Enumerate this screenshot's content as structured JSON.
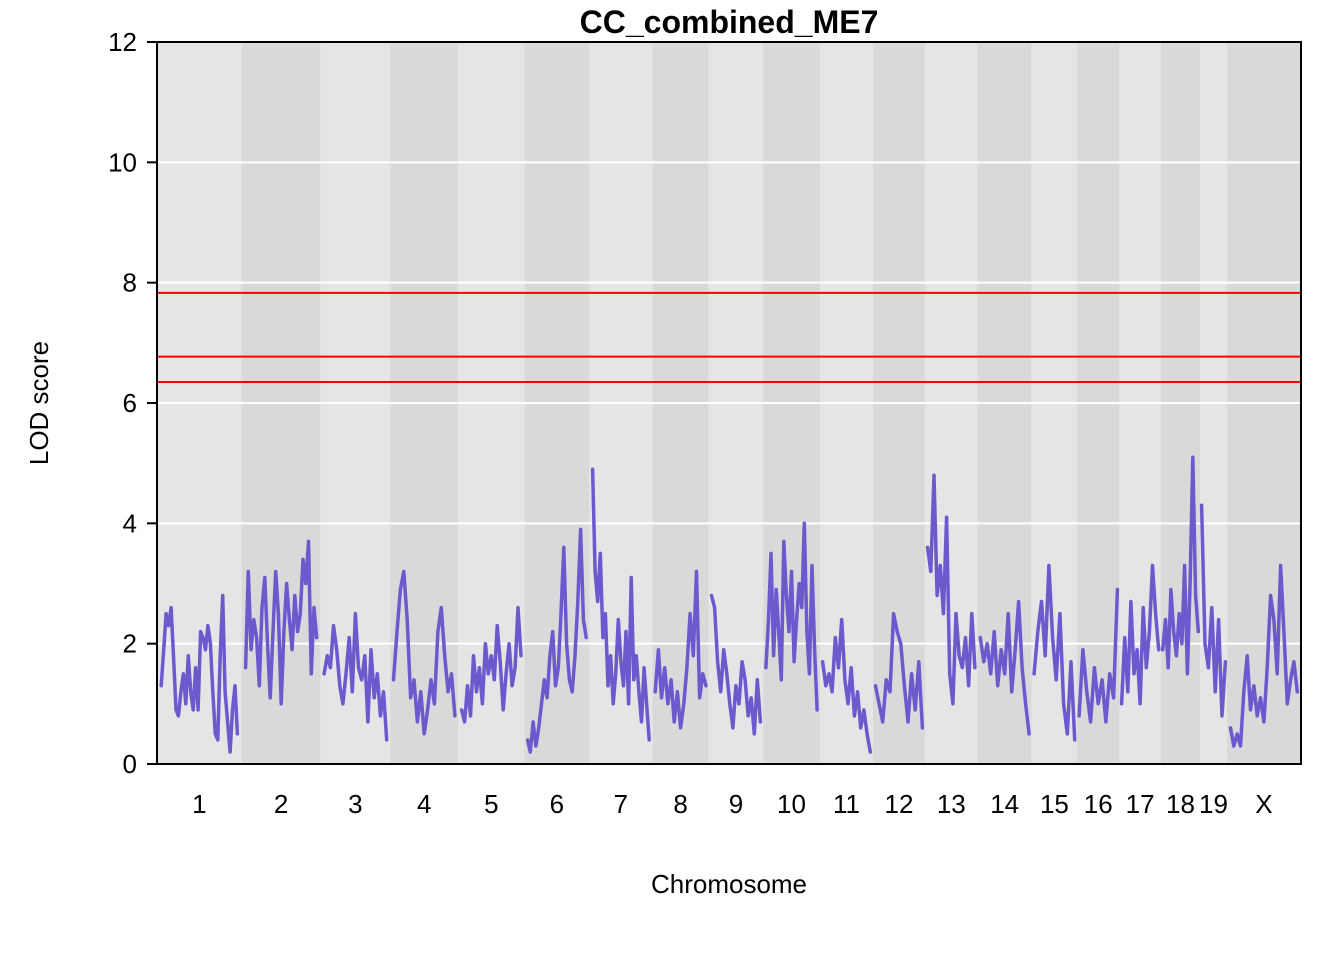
{
  "chart_data": {
    "type": "line",
    "title": "CC_combined_ME7",
    "xlabel": "Chromosome",
    "ylabel": "LOD score",
    "ylim": [
      0,
      12
    ],
    "yticks": [
      0,
      2,
      4,
      6,
      8,
      10,
      12
    ],
    "grid": true,
    "background_bands": [
      "#e5e5e5",
      "#d9d9d9"
    ],
    "line_color": "#6a5acd",
    "threshold_color": "#ff0000",
    "thresholds": [
      7.83,
      6.77,
      6.35
    ],
    "chromosomes": [
      {
        "label": "1",
        "length": 195
      },
      {
        "label": "2",
        "length": 182
      },
      {
        "label": "3",
        "length": 160
      },
      {
        "label": "4",
        "length": 157
      },
      {
        "label": "5",
        "length": 152
      },
      {
        "label": "6",
        "length": 150
      },
      {
        "label": "7",
        "length": 145
      },
      {
        "label": "8",
        "length": 130
      },
      {
        "label": "9",
        "length": 125
      },
      {
        "label": "10",
        "length": 131
      },
      {
        "label": "11",
        "length": 122
      },
      {
        "label": "12",
        "length": 120
      },
      {
        "label": "13",
        "length": 121
      },
      {
        "label": "14",
        "length": 125
      },
      {
        "label": "15",
        "length": 104
      },
      {
        "label": "16",
        "length": 98
      },
      {
        "label": "17",
        "length": 95
      },
      {
        "label": "18",
        "length": 91
      },
      {
        "label": "19",
        "length": 61
      },
      {
        "label": "X",
        "length": 171
      }
    ],
    "series": [
      {
        "chromosomes": [
          {
            "chr": "1",
            "lod": [
              1.3,
              1.9,
              2.5,
              2.3,
              2.6,
              1.8,
              0.9,
              0.8,
              1.2,
              1.5,
              1.0,
              1.8,
              1.2,
              0.9,
              1.6,
              0.9,
              2.2,
              2.1,
              1.9,
              2.3,
              2.0,
              1.2,
              0.5,
              0.4,
              1.8,
              2.8,
              1.2,
              0.7,
              0.2,
              0.9,
              1.3,
              0.5
            ]
          },
          {
            "chr": "2",
            "lod": [
              1.6,
              3.2,
              1.9,
              2.4,
              2.1,
              1.3,
              2.6,
              3.1,
              2.0,
              1.1,
              2.2,
              3.2,
              2.5,
              1.0,
              2.2,
              3.0,
              2.4,
              1.9,
              2.8,
              2.2,
              2.5,
              3.4,
              3.0,
              3.7,
              1.5,
              2.6,
              2.1
            ]
          },
          {
            "chr": "3",
            "lod": [
              1.5,
              1.8,
              1.6,
              2.3,
              1.9,
              1.3,
              1.0,
              1.5,
              2.1,
              1.2,
              2.5,
              1.6,
              1.4,
              1.8,
              0.7,
              1.9,
              1.1,
              1.5,
              0.8,
              1.2,
              0.4
            ]
          },
          {
            "chr": "4",
            "lod": [
              1.4,
              2.2,
              2.9,
              3.2,
              2.4,
              1.1,
              1.4,
              0.7,
              1.2,
              0.5,
              0.9,
              1.4,
              1.0,
              2.2,
              2.6,
              1.8,
              1.2,
              1.5,
              0.8
            ]
          },
          {
            "chr": "5",
            "lod": [
              0.9,
              0.7,
              1.3,
              0.8,
              1.8,
              1.2,
              1.6,
              1.0,
              2.0,
              1.5,
              1.8,
              1.4,
              2.3,
              1.7,
              0.9,
              1.5,
              2.0,
              1.3,
              1.6,
              2.6,
              1.8
            ]
          },
          {
            "chr": "6",
            "lod": [
              0.4,
              0.2,
              0.7,
              0.3,
              0.6,
              1.0,
              1.4,
              1.1,
              1.8,
              2.2,
              1.3,
              1.6,
              2.5,
              3.6,
              2.0,
              1.4,
              1.2,
              1.8,
              2.7,
              3.9,
              2.4,
              2.1
            ]
          },
          {
            "chr": "7",
            "lod": [
              4.9,
              3.2,
              2.7,
              3.5,
              2.1,
              2.5,
              1.3,
              1.8,
              1.0,
              1.5,
              2.4,
              1.7,
              1.3,
              2.2,
              1.0,
              3.1,
              1.4,
              1.8,
              1.2,
              0.7,
              1.6,
              1.0,
              0.4
            ]
          },
          {
            "chr": "8",
            "lod": [
              1.2,
              1.9,
              1.1,
              1.6,
              1.0,
              1.4,
              0.7,
              1.2,
              0.6,
              1.0,
              1.6,
              2.5,
              1.8,
              3.2,
              1.1,
              1.5,
              1.3
            ]
          },
          {
            "chr": "9",
            "lod": [
              2.8,
              2.6,
              1.7,
              1.2,
              1.9,
              1.5,
              1.0,
              0.6,
              1.3,
              1.0,
              1.7,
              1.4,
              0.8,
              1.1,
              0.5,
              1.4,
              0.7
            ]
          },
          {
            "chr": "10",
            "lod": [
              1.6,
              2.4,
              3.5,
              1.8,
              2.9,
              2.2,
              1.4,
              3.7,
              2.8,
              2.2,
              3.2,
              1.7,
              2.4,
              3.0,
              2.6,
              4.0,
              2.2,
              1.5,
              3.3,
              1.9,
              0.9
            ]
          },
          {
            "chr": "11",
            "lod": [
              1.7,
              1.3,
              1.5,
              1.2,
              2.1,
              1.6,
              2.4,
              1.4,
              1.0,
              1.6,
              0.8,
              1.2,
              0.6,
              0.9,
              0.5,
              0.2
            ]
          },
          {
            "chr": "12",
            "lod": [
              1.3,
              1.0,
              0.7,
              1.4,
              1.2,
              2.5,
              2.2,
              2.0,
              1.3,
              0.7,
              1.5,
              0.9,
              1.7,
              0.6
            ]
          },
          {
            "chr": "13",
            "lod": [
              3.6,
              3.2,
              4.8,
              2.8,
              3.3,
              2.5,
              4.1,
              1.5,
              1.0,
              2.5,
              1.8,
              1.6,
              2.1,
              1.3,
              2.5,
              1.6
            ]
          },
          {
            "chr": "14",
            "lod": [
              2.1,
              1.7,
              2.0,
              1.5,
              2.2,
              1.3,
              1.9,
              1.5,
              2.5,
              1.2,
              1.9,
              2.7,
              1.6,
              1.0,
              0.5
            ]
          },
          {
            "chr": "15",
            "lod": [
              1.5,
              2.2,
              2.7,
              1.8,
              3.3,
              2.1,
              1.4,
              2.5,
              1.0,
              0.5,
              1.7,
              0.4
            ]
          },
          {
            "chr": "16",
            "lod": [
              0.8,
              1.9,
              1.2,
              0.7,
              1.6,
              1.0,
              1.4,
              0.7,
              1.5,
              1.1,
              2.9
            ]
          },
          {
            "chr": "17",
            "lod": [
              1.0,
              2.1,
              1.2,
              2.7,
              1.5,
              1.9,
              1.0,
              2.6,
              1.6,
              2.2,
              3.3,
              2.5,
              1.9
            ]
          },
          {
            "chr": "18",
            "lod": [
              1.9,
              2.4,
              1.6,
              2.9,
              2.2,
              1.8,
              2.5,
              2.0,
              3.3,
              1.5,
              3.0,
              5.1,
              2.8,
              2.2
            ]
          },
          {
            "chr": "19",
            "lod": [
              4.3,
              2.0,
              1.6,
              2.6,
              1.2,
              2.4,
              0.8,
              1.7
            ]
          },
          {
            "chr": "X",
            "lod": [
              0.6,
              0.3,
              0.5,
              0.3,
              1.2,
              1.8,
              0.9,
              1.3,
              0.8,
              1.1,
              0.7,
              1.6,
              2.8,
              2.4,
              1.5,
              3.3,
              2.2,
              1.0,
              1.4,
              1.7,
              1.2
            ]
          }
        ]
      }
    ]
  }
}
